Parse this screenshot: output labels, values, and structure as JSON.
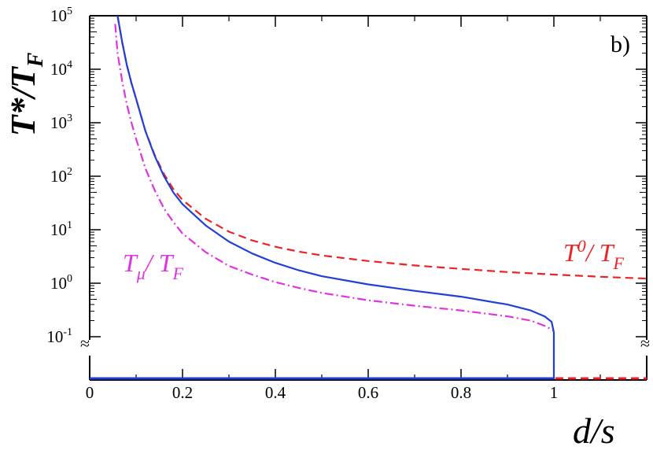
{
  "chart_data": {
    "type": "line",
    "panel_label": "b)",
    "xlabel": "d/s",
    "ylabel": {
      "main": "T*/T",
      "sub": "F"
    },
    "y_scale": "log",
    "xlim": [
      0,
      1.2
    ],
    "ylim": [
      0.1,
      100000
    ],
    "x_ticks": [
      "0",
      "0.2",
      "0.4",
      "0.6",
      "0.8",
      "1"
    ],
    "y_ticks": [
      {
        "base": "10",
        "exp": "-1"
      },
      {
        "base": "10",
        "exp": "0"
      },
      {
        "base": "10",
        "exp": "1"
      },
      {
        "base": "10",
        "exp": "2"
      },
      {
        "base": "10",
        "exp": "3"
      },
      {
        "base": "10",
        "exp": "4"
      },
      {
        "base": "10",
        "exp": "5"
      }
    ],
    "axis_break_mark": "≈",
    "baseline_value": 0,
    "series": [
      {
        "name": "T0/TF",
        "label_parts": {
          "a": "T",
          "a_sup": "0",
          "sep": "/ T",
          "b_sub": "F"
        },
        "color": "#ee2222",
        "style": "dashed",
        "x": [
          0.06,
          0.07,
          0.08,
          0.09,
          0.1,
          0.12,
          0.14,
          0.16,
          0.18,
          0.2,
          0.25,
          0.3,
          0.35,
          0.4,
          0.45,
          0.5,
          0.6,
          0.7,
          0.8,
          0.9,
          1.0,
          1.1,
          1.2
        ],
        "y": [
          100000,
          32000,
          12000,
          5500,
          2800,
          700,
          250,
          110,
          58,
          36,
          16,
          9.2,
          6.3,
          4.8,
          3.9,
          3.3,
          2.6,
          2.15,
          1.85,
          1.62,
          1.45,
          1.32,
          1.22
        ]
      },
      {
        "name": "T*/TF",
        "color": "#1f3fd8",
        "style": "solid",
        "x": [
          0.06,
          0.07,
          0.08,
          0.09,
          0.1,
          0.12,
          0.14,
          0.16,
          0.18,
          0.2,
          0.25,
          0.3,
          0.35,
          0.4,
          0.45,
          0.5,
          0.6,
          0.7,
          0.8,
          0.9,
          0.95,
          0.98,
          0.995,
          1.0,
          1.0
        ],
        "y": [
          100000,
          32000,
          12000,
          5500,
          2800,
          700,
          240,
          100,
          50,
          30,
          12,
          6.0,
          3.6,
          2.4,
          1.75,
          1.35,
          0.95,
          0.72,
          0.56,
          0.4,
          0.31,
          0.24,
          0.19,
          0.12,
          0
        ]
      },
      {
        "name": "Tμ/TF",
        "label_parts": {
          "a": "T",
          "a_sub": "μ",
          "sep": "/ T",
          "b_sub": "F"
        },
        "color": "#e033e0",
        "style": "dashdot",
        "x": [
          0.055,
          0.06,
          0.07,
          0.08,
          0.09,
          0.1,
          0.12,
          0.14,
          0.16,
          0.18,
          0.2,
          0.25,
          0.3,
          0.35,
          0.4,
          0.45,
          0.5,
          0.6,
          0.7,
          0.8,
          0.9,
          0.95,
          0.98,
          1.0
        ],
        "y": [
          70000,
          20000,
          6000,
          2200,
          1000,
          500,
          140,
          55,
          25,
          14,
          8.5,
          3.8,
          2.1,
          1.45,
          1.05,
          0.82,
          0.66,
          0.48,
          0.38,
          0.31,
          0.24,
          0.2,
          0.16,
          0.13
        ]
      }
    ],
    "grid": false,
    "legend": "inline labels"
  }
}
